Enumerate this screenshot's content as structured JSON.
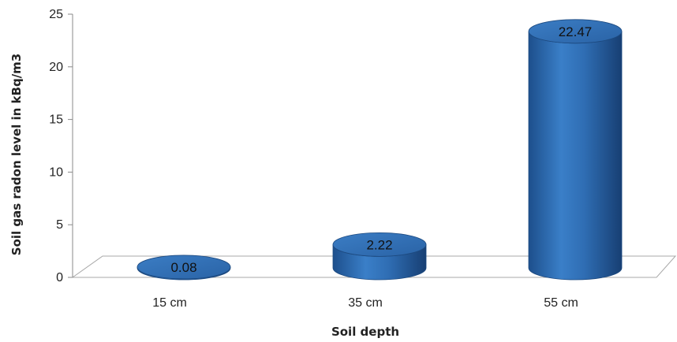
{
  "chart_data": {
    "type": "bar",
    "style": "3d-cylinder",
    "title": "",
    "xlabel": "Soil depth",
    "ylabel": "Soil gas radon level in kBq/m3",
    "categories": [
      "15 cm",
      "35 cm",
      "55 cm"
    ],
    "values": [
      0.08,
      2.22,
      22.47
    ],
    "data_labels": [
      "0.08",
      "2.22",
      "22.47"
    ],
    "ylim": [
      0,
      25
    ],
    "yticks": [
      0,
      5,
      10,
      15,
      20,
      25
    ],
    "grid": false,
    "legend": "none",
    "bar_color": "#2f6db3"
  }
}
